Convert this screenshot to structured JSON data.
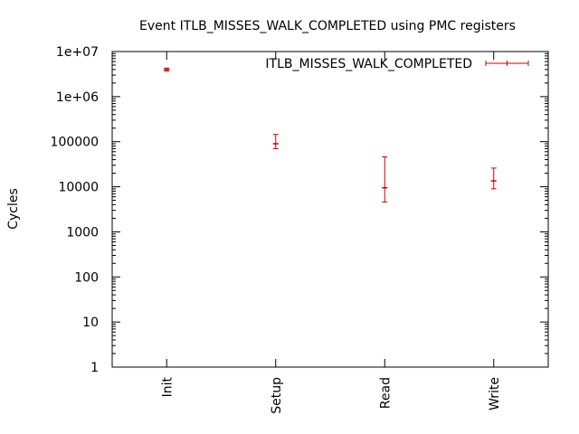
{
  "chart_data": {
    "type": "scatter",
    "title": "Event ITLB_MISSES_WALK_COMPLETED using PMC registers",
    "xlabel": "",
    "ylabel": "Cycles",
    "yscale": "log",
    "ylim": [
      1,
      10000000
    ],
    "yticks": [
      {
        "value": 1,
        "label": "1"
      },
      {
        "value": 10,
        "label": "10"
      },
      {
        "value": 100,
        "label": "100"
      },
      {
        "value": 1000,
        "label": "1000"
      },
      {
        "value": 10000,
        "label": "10000"
      },
      {
        "value": 100000,
        "label": "100000"
      },
      {
        "value": 1000000,
        "label": "1e+06"
      },
      {
        "value": 10000000,
        "label": "1e+07"
      }
    ],
    "categories": [
      "Init",
      "Setup",
      "Read",
      "Write"
    ],
    "series": [
      {
        "name": "ITLB_MISSES_WALK_COMPLETED",
        "color": "#cc0000",
        "style": "errorbars",
        "points": [
          {
            "category": "Init",
            "value": 4000000,
            "low": 3700000,
            "high": 4300000
          },
          {
            "category": "Setup",
            "value": 90000,
            "low": 70000,
            "high": 145000
          },
          {
            "category": "Read",
            "value": 9500,
            "low": 4600,
            "high": 46000
          },
          {
            "category": "Write",
            "value": 13500,
            "low": 9000,
            "high": 26000
          }
        ]
      }
    ],
    "legend_position": "top-right",
    "grid": false
  }
}
